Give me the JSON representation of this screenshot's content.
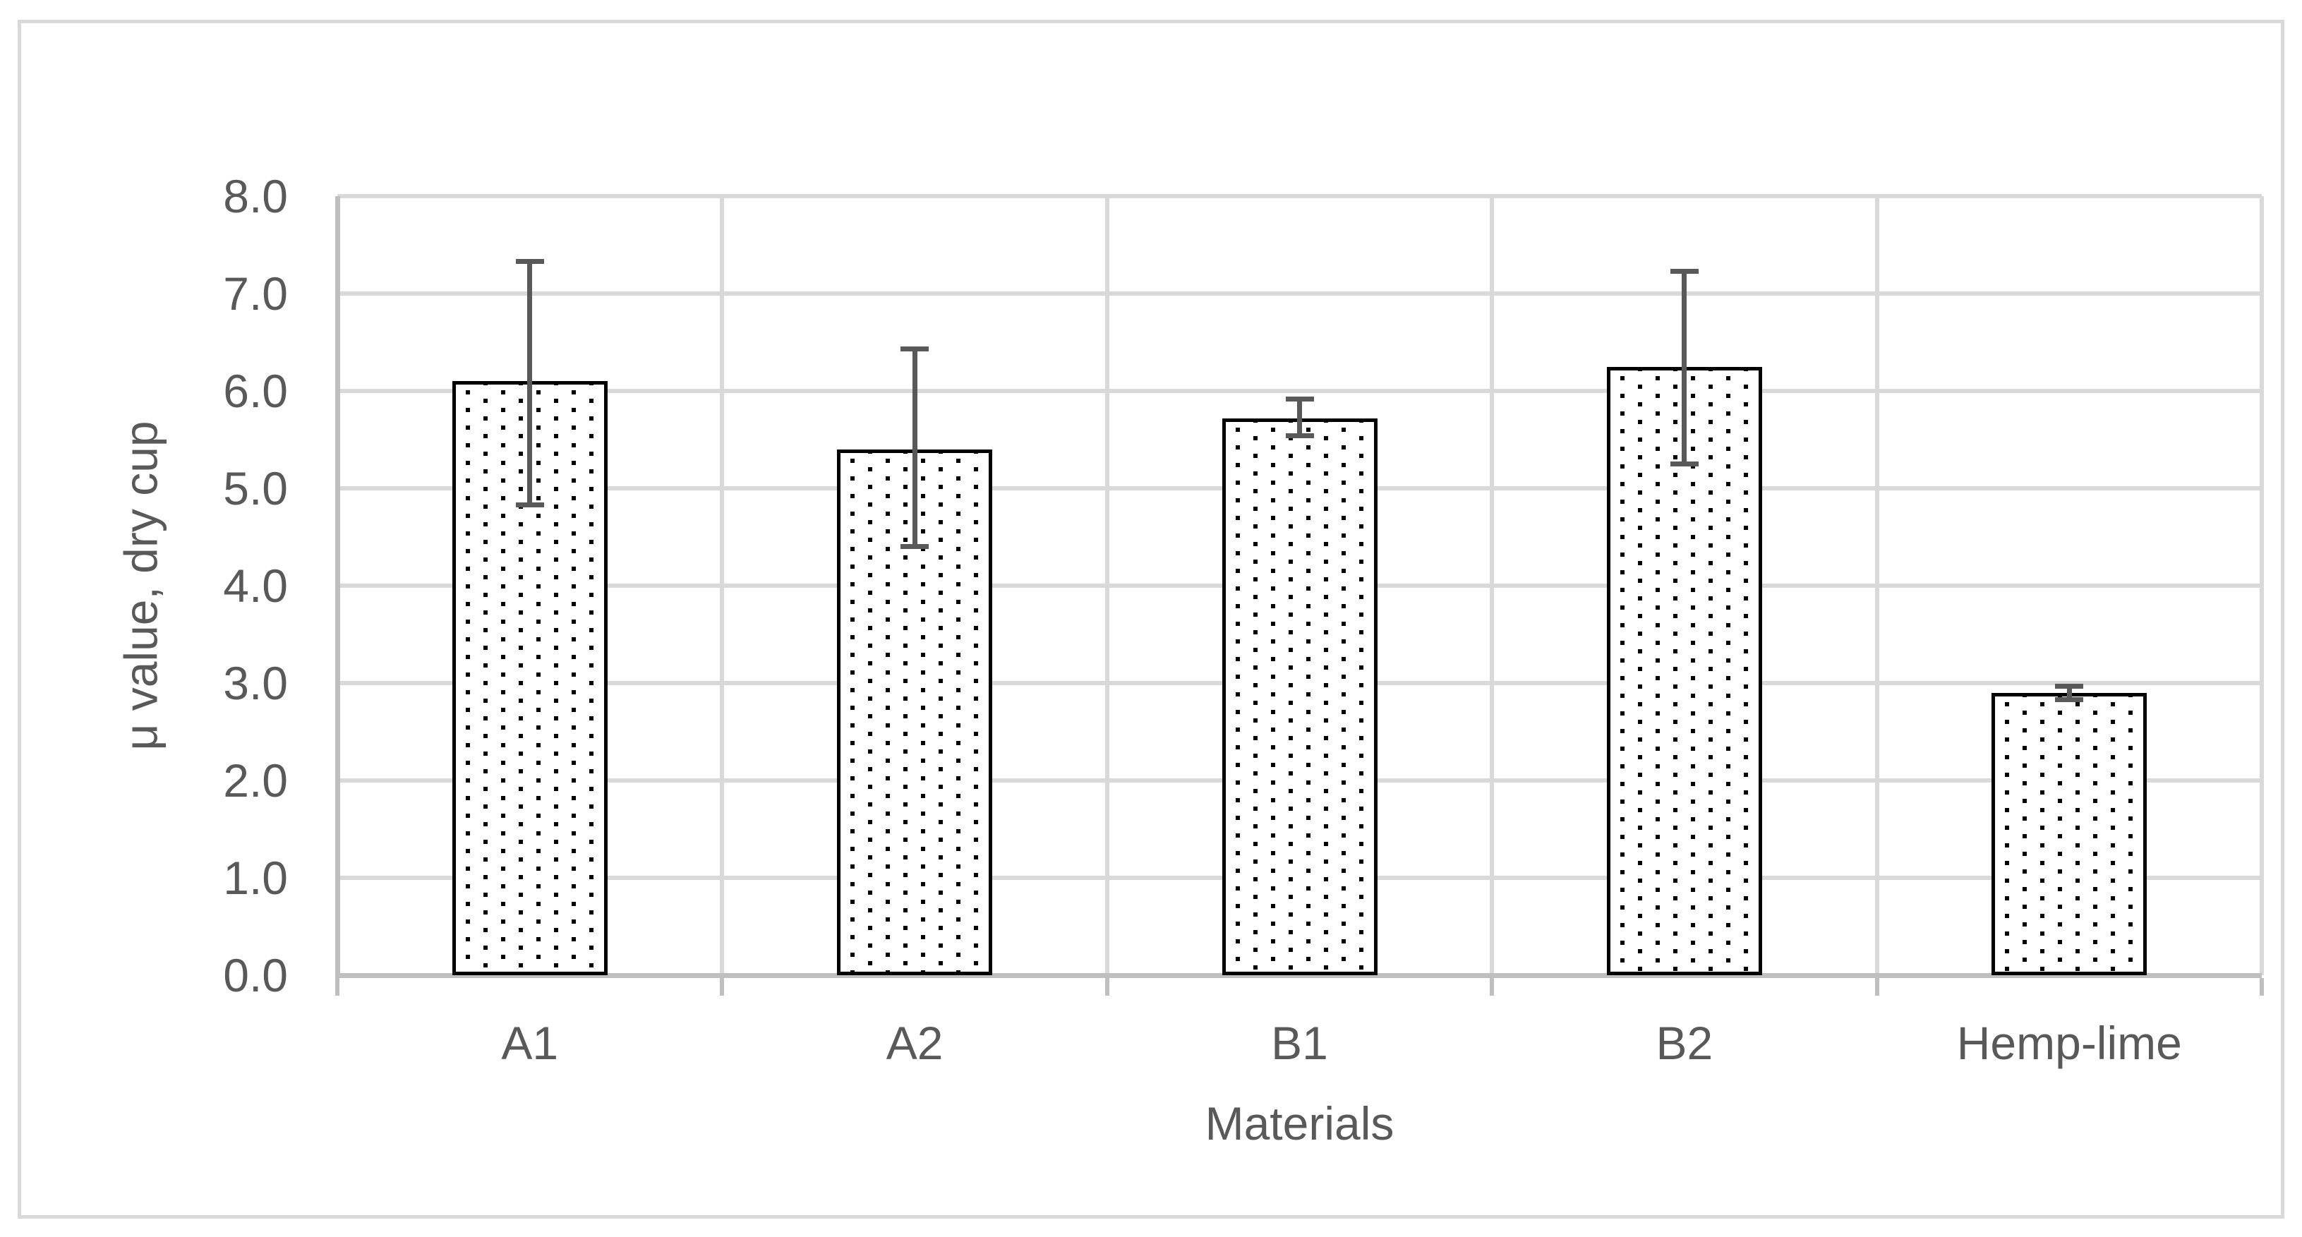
{
  "chart_data": {
    "type": "bar",
    "title": "",
    "categories": [
      "A1",
      "A2",
      "B1",
      "B2",
      "Hemp-lime"
    ],
    "values": [
      6.1,
      5.4,
      5.72,
      6.25,
      2.9
    ],
    "error_low": [
      4.83,
      4.4,
      5.54,
      5.25,
      2.83
    ],
    "error_high": [
      7.33,
      6.43,
      5.92,
      7.23,
      2.97
    ],
    "xlabel": "Materials",
    "ylabel": "μ value, dry cup",
    "ylim": [
      0,
      8
    ],
    "ytick_step": 1.0,
    "ytick_labels": [
      "0.0",
      "1.0",
      "2.0",
      "3.0",
      "4.0",
      "5.0",
      "6.0",
      "7.0",
      "8.0"
    ],
    "grid": true,
    "legend": "none",
    "bar_style": "white fill with black square-dot pattern and black outline",
    "error_bar_style": "caps on both ends"
  },
  "colors": {
    "background": "#ffffff",
    "frame_border": "#d9d9d9",
    "gridline": "#d9d9d9",
    "axis_line": "#bfbfbf",
    "text": "#595959",
    "error_bar": "#595959",
    "bar_border": "#000000",
    "bar_dot": "#000000",
    "bar_fill": "#ffffff"
  }
}
